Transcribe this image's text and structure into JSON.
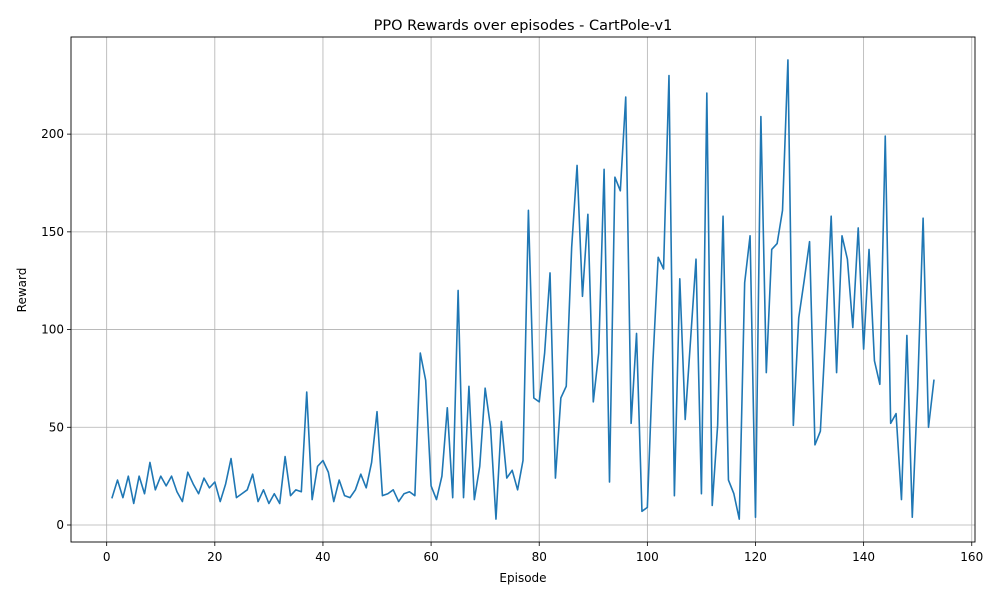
{
  "chart_data": {
    "type": "line",
    "title": "PPO Rewards over episodes - CartPole-v1",
    "xlabel": "Episode",
    "ylabel": "Reward",
    "xlim": [
      -6.6,
      160.6
    ],
    "ylim": [
      -8.7,
      249.7
    ],
    "xticks": [
      0,
      20,
      40,
      60,
      80,
      100,
      120,
      140,
      160
    ],
    "yticks": [
      0,
      50,
      100,
      150,
      200
    ],
    "grid": true,
    "line_color": "#1f77b4",
    "series": [
      {
        "x_start": 1,
        "values": [
          14,
          23,
          14,
          25,
          11,
          25,
          16,
          32,
          18,
          25,
          20,
          25,
          17,
          12,
          27,
          21,
          16,
          24,
          19,
          22,
          12,
          21,
          34,
          14,
          16,
          18,
          26,
          12,
          18,
          11,
          16,
          11,
          35,
          15,
          18,
          17,
          68,
          13,
          30,
          33,
          27,
          12,
          23,
          15,
          14,
          18,
          26,
          19,
          32,
          58,
          15,
          16,
          18,
          12,
          16,
          17,
          15,
          88,
          74,
          20,
          13,
          25,
          60,
          14,
          120,
          14,
          71,
          13,
          30,
          70,
          50,
          3,
          53,
          24,
          28,
          18,
          33,
          161,
          65,
          63,
          88,
          129,
          24,
          65,
          71,
          142,
          184,
          117,
          159,
          63,
          88,
          182,
          22,
          178,
          171,
          219,
          52,
          98,
          7,
          9,
          82,
          137,
          131,
          230,
          15,
          126,
          54,
          95,
          136,
          16,
          221,
          10,
          51,
          158,
          23,
          16,
          3,
          124,
          148,
          4,
          209,
          78,
          141,
          144,
          161,
          238,
          51,
          106,
          125,
          145,
          41,
          48,
          100,
          158,
          78,
          148,
          136,
          101,
          152,
          90,
          141,
          84,
          72,
          199,
          52,
          57,
          13,
          97,
          4,
          70,
          157,
          50,
          74
        ]
      }
    ]
  }
}
